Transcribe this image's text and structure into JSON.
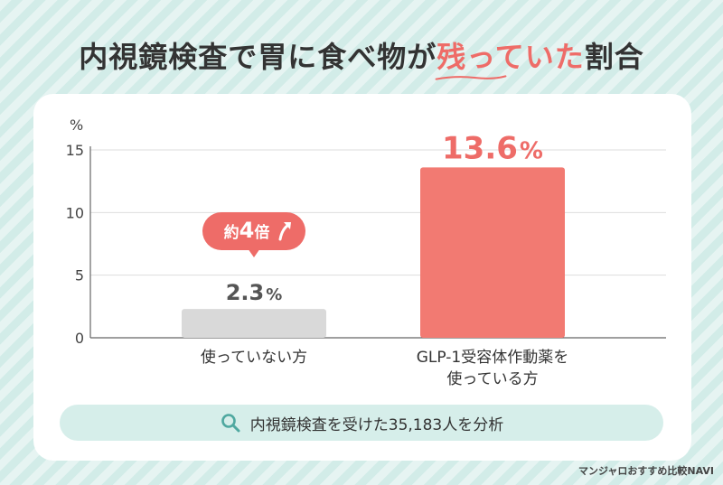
{
  "title": {
    "before": "内視鏡検査で胃に食べ物が",
    "highlight": "残っていた",
    "after": "割合"
  },
  "chart_data": {
    "type": "bar",
    "ylabel": "%",
    "ylim": [
      0,
      15
    ],
    "yticks": [
      0,
      5,
      10,
      15
    ],
    "grid": true,
    "categories": [
      "使っていない方",
      "GLP-1受容体作動薬を\n使っている方"
    ],
    "values": [
      2.3,
      13.6
    ],
    "value_labels": [
      "2.3",
      "13.6"
    ],
    "value_unit": "%",
    "bar_colors": [
      "#d9d9d9",
      "#f27a72"
    ],
    "annotation": {
      "prefix": "約",
      "number": "4",
      "suffix": "倍",
      "color": "#ee6c68"
    }
  },
  "footnote": "内視鏡検査を受けた35,183人を分析",
  "footnote_icon": "search-icon",
  "credit": "マンジャロおすすめ比較NAVI",
  "colors": {
    "accent": "#ee6c68",
    "teal": "#4fa8a0",
    "pale_teal": "#d6eeea",
    "gray_bar": "#d9d9d9",
    "red_bar": "#f27a72"
  }
}
